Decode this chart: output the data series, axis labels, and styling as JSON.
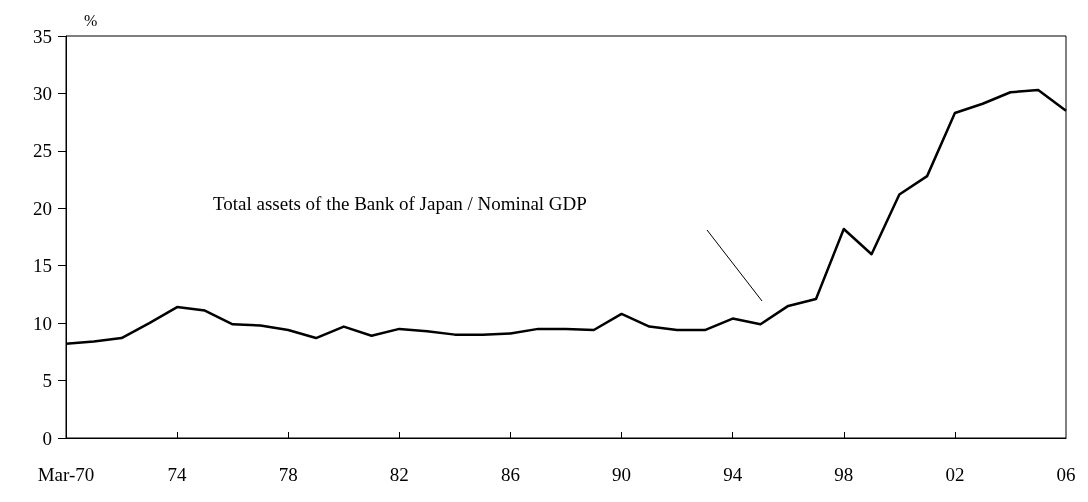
{
  "chart_data": {
    "type": "line",
    "ylabel": "%",
    "categories": [
      "Mar-70",
      null,
      null,
      null,
      "74",
      null,
      null,
      null,
      "78",
      null,
      null,
      null,
      "82",
      null,
      null,
      null,
      "86",
      null,
      null,
      null,
      "90",
      null,
      null,
      null,
      "94",
      null,
      null,
      null,
      "98",
      null,
      null,
      null,
      "02",
      null,
      null,
      null,
      "06"
    ],
    "series": [
      {
        "color": "#000000",
        "values": [
          8.2,
          8.4,
          8.7,
          10.0,
          11.4,
          11.1,
          9.9,
          9.8,
          9.4,
          8.7,
          9.7,
          8.9,
          9.5,
          9.3,
          9.0,
          9.0,
          9.1,
          9.5,
          9.5,
          9.4,
          10.8,
          9.7,
          9.4,
          9.4,
          10.4,
          9.9,
          11.5,
          12.1,
          18.2,
          16.0,
          21.2,
          22.8,
          28.3,
          29.1,
          30.1,
          30.3,
          28.5
        ]
      }
    ],
    "ylim": [
      0,
      35
    ],
    "yticks": [
      0,
      5,
      10,
      15,
      20,
      25,
      30,
      35
    ],
    "annotations": [
      "Total assets of the Bank of Japan / Nominal GDP"
    ],
    "grid": false,
    "marker": "none",
    "line_style": "solid"
  }
}
